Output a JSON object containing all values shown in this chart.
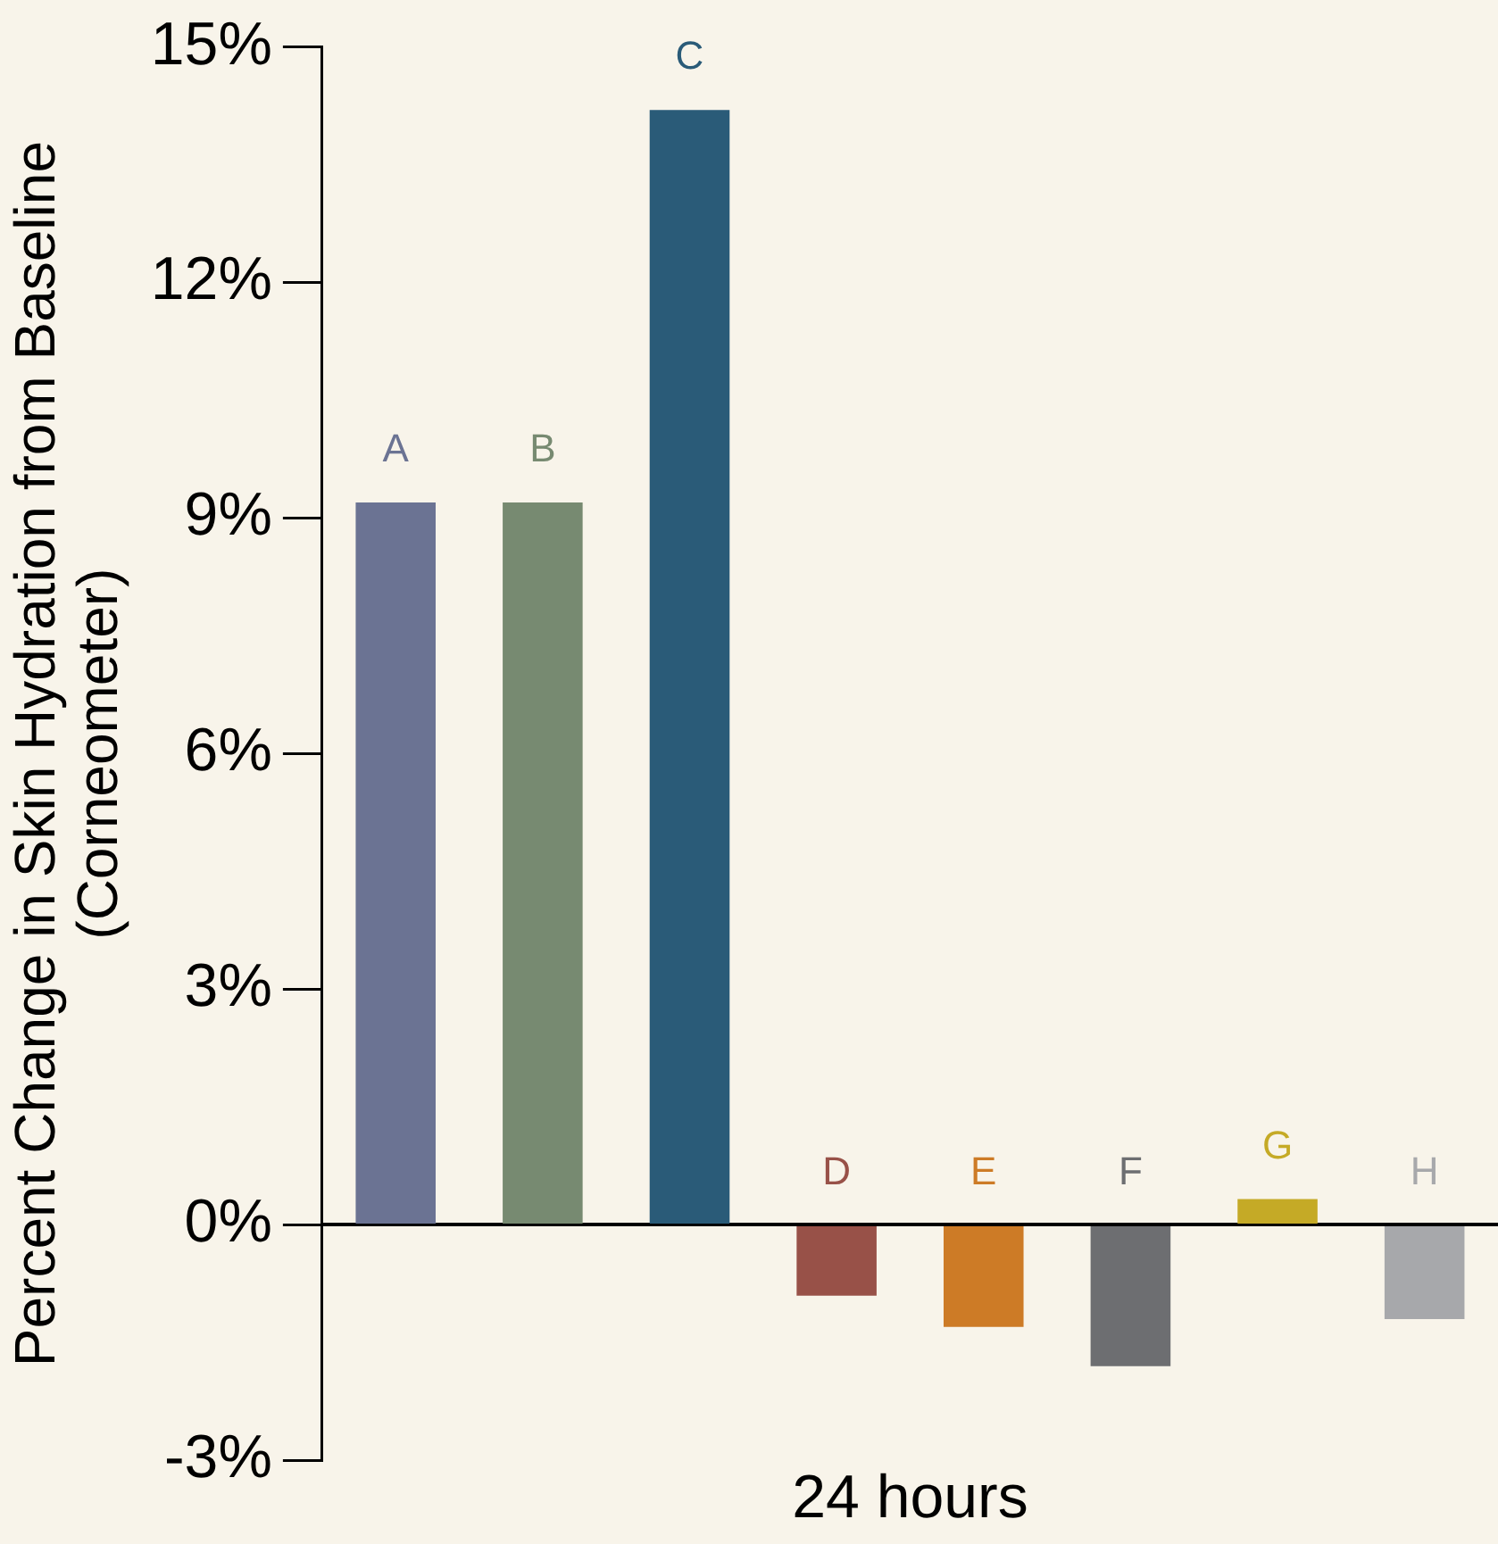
{
  "chart_data": {
    "type": "bar",
    "xlabel": "24 hours",
    "ylabel": "Percent Change in Skin Hydration from Baseline (Corneometer)",
    "categories": [
      "A",
      "B",
      "C",
      "D",
      "E",
      "F",
      "G",
      "H"
    ],
    "values": [
      9.2,
      9.2,
      14.2,
      -0.9,
      -1.3,
      -1.8,
      0.33,
      -1.2
    ],
    "colors": [
      "#6b7393",
      "#778a71",
      "#2a5b78",
      "#985148",
      "#cd7b26",
      "#6d6e71",
      "#c5aa26",
      "#a7a8ab"
    ],
    "ylim": [
      -3,
      15
    ],
    "yticks": [
      {
        "value": -3,
        "label": "-3%"
      },
      {
        "value": 0,
        "label": "0%"
      },
      {
        "value": 3,
        "label": "3%"
      },
      {
        "value": 6,
        "label": "6%"
      },
      {
        "value": 9,
        "label": "9%"
      },
      {
        "value": 12,
        "label": "12%"
      },
      {
        "value": 15,
        "label": "15%"
      }
    ],
    "grid": false,
    "legend": false
  }
}
